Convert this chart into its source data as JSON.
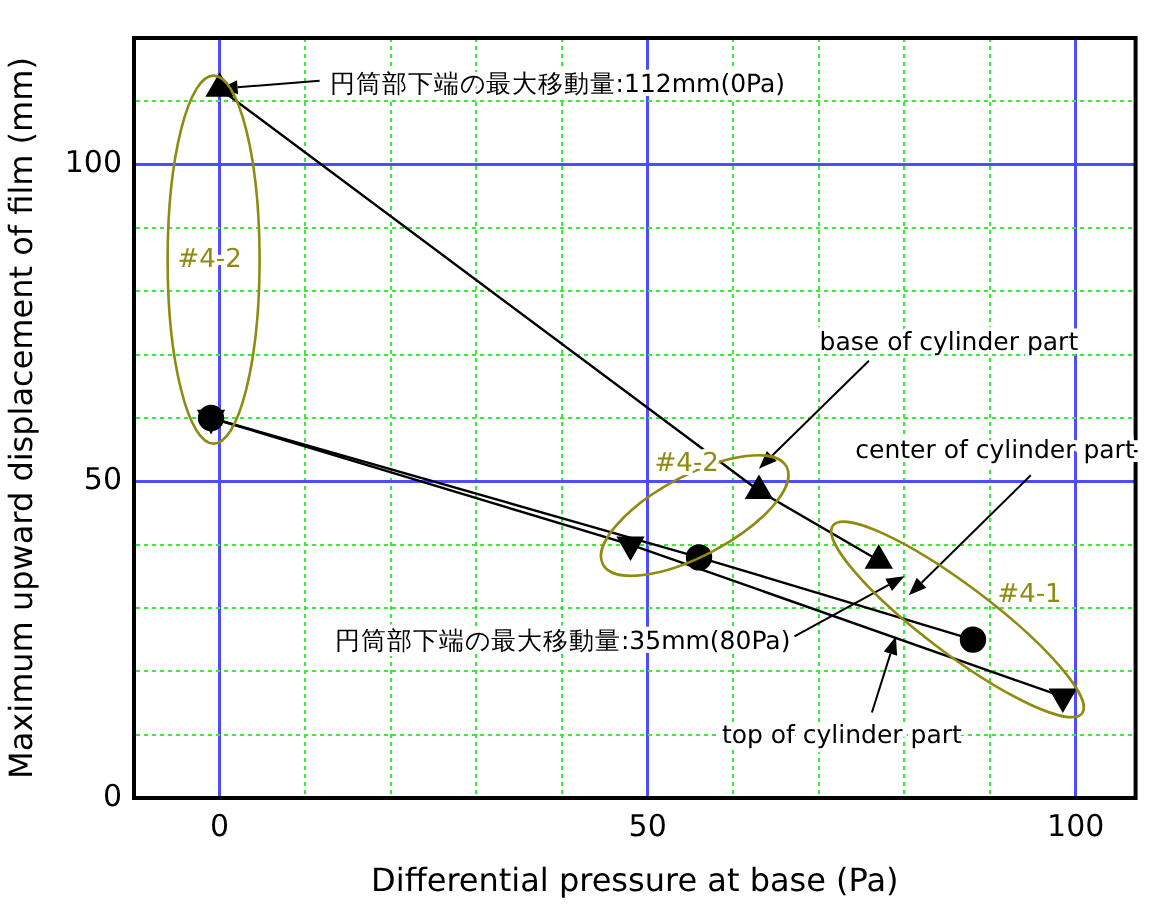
{
  "chart_data": {
    "type": "line",
    "xlabel": "Differential pressure at base (Pa)",
    "ylabel": "Maximum upward displacement of film (mm)",
    "xlim": [
      -10,
      107
    ],
    "xticks": [
      0,
      {
        "value": 10,
        "label": null
      },
      {
        "value": 20,
        "label": null
      },
      {
        "value": 30,
        "label": null
      },
      {
        "value": 40,
        "label": null
      },
      50,
      {
        "value": 60,
        "label": null
      },
      {
        "value": 70,
        "label": null
      },
      {
        "value": 80,
        "label": null
      },
      {
        "value": 90,
        "label": null
      },
      100
    ],
    "ylim": [
      0,
      120
    ],
    "yticks": [
      0,
      {
        "value": 10,
        "label": null
      },
      {
        "value": 20,
        "label": null
      },
      {
        "value": 30,
        "label": null
      },
      {
        "value": 40,
        "label": null
      },
      50,
      {
        "value": 60,
        "label": null
      },
      {
        "value": 70,
        "label": null
      },
      {
        "value": 80,
        "label": null
      },
      {
        "value": 90,
        "label": null
      },
      100,
      {
        "value": 110,
        "label": null
      }
    ],
    "grid": true,
    "line_style": "solid",
    "series": [
      {
        "color": "#000000",
        "marker": "triangle",
        "x": [
          0,
          63,
          77
        ],
        "values": [
          112,
          48.5,
          37.5
        ]
      },
      {
        "color": "#000000",
        "marker": "circle",
        "x": [
          -1,
          56,
          88
        ],
        "values": [
          60,
          38,
          25
        ]
      },
      {
        "color": "#000000",
        "marker": "triangle_down",
        "x": [
          -1,
          48,
          98.5
        ],
        "values": [
          60,
          40,
          16
        ]
      }
    ],
    "annotations": [
      "円筒部下端の最大移動量:112mm(0Pa)",
      "円筒部下端の最大移動量:35mm(80Pa)",
      "base of cylinder part",
      "center of cylinder part",
      "top of cylinder part",
      "#4-2",
      "#4-2",
      "#4-1"
    ]
  }
}
